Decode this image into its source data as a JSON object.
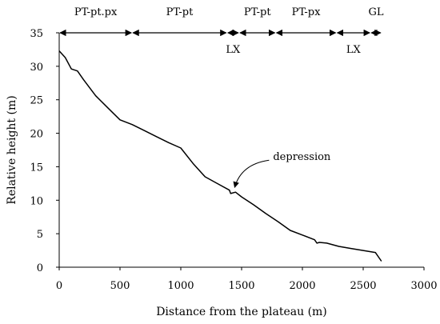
{
  "chart_data": {
    "type": "line",
    "xlabel": "Distance from the plateau (m)",
    "ylabel": "Relative height (m)",
    "xlim": [
      0,
      3000
    ],
    "ylim": [
      0,
      35
    ],
    "xticks": [
      "0",
      "500",
      "1000",
      "1500",
      "2000",
      "2500",
      "3000"
    ],
    "yticks": [
      "0",
      "5",
      "10",
      "15",
      "20",
      "25",
      "30",
      "35"
    ],
    "grid": false,
    "series": [
      {
        "x": [
          0,
          50,
          100,
          150,
          200,
          300,
          400,
          500,
          600,
          700,
          800,
          900,
          1000,
          1100,
          1200,
          1300,
          1400,
          1410,
          1450,
          1500,
          1600,
          1700,
          1800,
          1900,
          2000,
          2100,
          2120,
          2140,
          2200,
          2300,
          2400,
          2500,
          2600,
          2650
        ],
        "y": [
          32.3,
          31.3,
          29.6,
          29.3,
          28.0,
          25.6,
          23.8,
          22.0,
          21.3,
          20.4,
          19.5,
          18.6,
          17.8,
          15.5,
          13.5,
          12.5,
          11.5,
          11.0,
          11.2,
          10.5,
          9.3,
          8.0,
          6.8,
          5.5,
          4.8,
          4.1,
          3.6,
          3.7,
          3.6,
          3.1,
          2.8,
          2.5,
          2.2,
          0.9
        ]
      }
    ],
    "segments": [
      {
        "label": "PT-pt.px",
        "x_start": 0,
        "x_end": 600,
        "row": "top"
      },
      {
        "label": "PT-pt",
        "x_start": 600,
        "x_end": 1380,
        "row": "top"
      },
      {
        "label": "LX",
        "x_start": 1380,
        "x_end": 1480,
        "row": "bottom"
      },
      {
        "label": "PT-pt",
        "x_start": 1480,
        "x_end": 1780,
        "row": "top"
      },
      {
        "label": "PT-px",
        "x_start": 1780,
        "x_end": 2280,
        "row": "top"
      },
      {
        "label": "LX",
        "x_start": 2280,
        "x_end": 2560,
        "row": "bottom"
      },
      {
        "label": "GL",
        "x_start": 2560,
        "x_end": 2650,
        "row": "top"
      }
    ],
    "annotations": [
      {
        "text": "depression",
        "x": 1430,
        "y": 11.2
      }
    ]
  }
}
